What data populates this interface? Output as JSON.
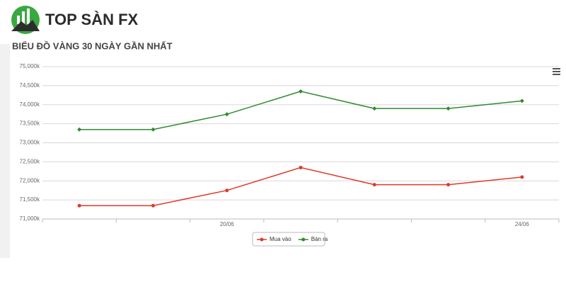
{
  "brand": "TOP SÀN FX",
  "chart_data": {
    "type": "line",
    "title": "BIỂU ĐỒ VÀNG 30 NGÀY GẦN NHẤT",
    "categories": [
      null,
      null,
      "20/06",
      null,
      null,
      null,
      "24/06"
    ],
    "series": [
      {
        "name": "Mua vào",
        "color": "#e0392b",
        "values": [
          71350,
          71350,
          71750,
          72350,
          71900,
          71900,
          72100
        ]
      },
      {
        "name": "Bán ra",
        "color": "#2e8b2e",
        "values": [
          73350,
          73350,
          73750,
          74350,
          73900,
          73900,
          74100
        ]
      }
    ],
    "ylim": [
      71000,
      75000
    ],
    "yticks": [
      {
        "value": 71000,
        "label": "71,000k"
      },
      {
        "value": 71500,
        "label": "71,500k"
      },
      {
        "value": 72000,
        "label": "72,000k"
      },
      {
        "value": 72500,
        "label": "72,500k"
      },
      {
        "value": 73000,
        "label": "73,000k"
      },
      {
        "value": 73500,
        "label": "73,500k"
      },
      {
        "value": 74000,
        "label": "74,000k"
      },
      {
        "value": 74500,
        "label": "74,500k"
      },
      {
        "value": 75000,
        "label": "75,000k"
      }
    ],
    "grid": true,
    "legend": "bottom"
  }
}
